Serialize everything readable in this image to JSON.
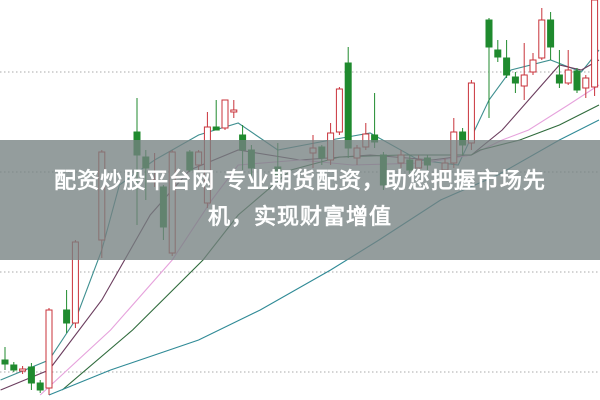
{
  "banner": {
    "line1": "配资炒股平台网 专业期货配资，助您把握市场先",
    "line2": "机，实现财富增值"
  },
  "chart_data": {
    "type": "candlestick",
    "title": "",
    "xlabel": "",
    "ylabel": "",
    "note_units": "relative price (no axis printed)",
    "ylim": [
      0,
      100
    ],
    "xlim": [
      -0.5,
      67.5
    ],
    "grid": true,
    "grid_levels": [
      82,
      57,
      32,
      7
    ],
    "colors": {
      "up": "#c8323a",
      "down": "#1f8a2e",
      "grid": "#aaaaaa",
      "banner": "#76827f"
    },
    "candle_fields": [
      "slot",
      "open",
      "close",
      "high",
      "low"
    ],
    "candles": [
      [
        0,
        10,
        9,
        13.25,
        7.5
      ],
      [
        1,
        8.75,
        7.5,
        9.5,
        7
      ],
      [
        2,
        7.25,
        7.75,
        8.5,
        6.5
      ],
      [
        3,
        8.25,
        4.25,
        9.25,
        2.5
      ],
      [
        4,
        4.25,
        2.5,
        5,
        1.75
      ],
      [
        5,
        3,
        22.5,
        23,
        1.25
      ],
      [
        7,
        22.5,
        19.25,
        27.5,
        16.75
      ],
      [
        8,
        19.25,
        39.5,
        40,
        18
      ],
      [
        11,
        40,
        62,
        62.5,
        35.5
      ],
      [
        15,
        67,
        61.25,
        75.5,
        43.75
      ],
      [
        16,
        60.75,
        58,
        62.5,
        50
      ],
      [
        17,
        54.5,
        55,
        61.75,
        53.25
      ],
      [
        18,
        53.25,
        43.25,
        53.75,
        40
      ],
      [
        19,
        36.75,
        62,
        62.5,
        36
      ],
      [
        21,
        62,
        57.5,
        62.5,
        57
      ],
      [
        22,
        58.75,
        62,
        62.5,
        57.5
      ],
      [
        23,
        49.25,
        68.25,
        72,
        48
      ],
      [
        24,
        68.25,
        67.5,
        75,
        67.5
      ],
      [
        25,
        68,
        75,
        75,
        67.5
      ],
      [
        26,
        72,
        72.5,
        75,
        70.5
      ],
      [
        27,
        66.25,
        62.5,
        68.75,
        57.5
      ],
      [
        28,
        62.5,
        58,
        63.75,
        55
      ],
      [
        31,
        58.25,
        56.25,
        64.25,
        55.5
      ],
      [
        35,
        61.75,
        63,
        66.25,
        58
      ],
      [
        36,
        63.25,
        60.5,
        63.75,
        58.75
      ],
      [
        37,
        60,
        66.75,
        69.25,
        58.75
      ],
      [
        38,
        67,
        77.75,
        78.25,
        66.25
      ],
      [
        39,
        84.25,
        63,
        88.25,
        60.5
      ],
      [
        40,
        60.5,
        63,
        63.75,
        58.75
      ],
      [
        41,
        63.25,
        66.5,
        69.25,
        62.5
      ],
      [
        42,
        66.25,
        64.5,
        76.75,
        63
      ],
      [
        43,
        61.25,
        53.75,
        62,
        52.5
      ],
      [
        45,
        59.25,
        61.25,
        62.5,
        58
      ],
      [
        46,
        60,
        57.5,
        61.25,
        56.25
      ],
      [
        47,
        58,
        60,
        61.25,
        57
      ],
      [
        48,
        60.5,
        58.75,
        61.25,
        57.5
      ],
      [
        50,
        57.5,
        59.25,
        60.5,
        56.25
      ],
      [
        51,
        59.25,
        67,
        70.5,
        58
      ],
      [
        52,
        67,
        63.75,
        68,
        61.25
      ],
      [
        53,
        64.25,
        79.25,
        80,
        62.5
      ],
      [
        55,
        95,
        88.25,
        95.5,
        70.5
      ],
      [
        56,
        87.5,
        85.75,
        90,
        84.5
      ],
      [
        57,
        85.5,
        81.25,
        90,
        80.5
      ],
      [
        58,
        80.75,
        79.25,
        82,
        76.75
      ],
      [
        59,
        78.5,
        81.25,
        89.25,
        75
      ],
      [
        60,
        82,
        85,
        86.75,
        81.25
      ],
      [
        61,
        85.5,
        95,
        98,
        85
      ],
      [
        62,
        95,
        88.25,
        97,
        85
      ],
      [
        63,
        81.25,
        79.25,
        87.5,
        78
      ],
      [
        64,
        79.25,
        82.5,
        87.5,
        78.75
      ],
      [
        65,
        82.25,
        77.5,
        83,
        76.75
      ],
      [
        66,
        78,
        80.5,
        81.25,
        75.5
      ],
      [
        67,
        78.25,
        100,
        100,
        76
      ]
    ],
    "moving_averages": [
      {
        "color": "#3e8f90",
        "points": [
          [
            -0.5,
            5
          ],
          [
            5,
            10
          ],
          [
            8,
            20
          ],
          [
            11,
            37.5
          ],
          [
            13,
            53.75
          ],
          [
            17,
            60
          ],
          [
            22,
            66.25
          ],
          [
            26.5,
            69.25
          ],
          [
            31,
            62.5
          ],
          [
            37,
            65
          ],
          [
            41.5,
            66.75
          ],
          [
            47,
            60
          ],
          [
            51.5,
            58.75
          ],
          [
            55,
            75
          ],
          [
            57.5,
            82.5
          ],
          [
            62,
            85
          ],
          [
            65.5,
            82
          ],
          [
            67.5,
            87.5
          ]
        ]
      },
      {
        "color": "#6b3d5e",
        "points": [
          [
            -0.5,
            2.5
          ],
          [
            5,
            7.5
          ],
          [
            11,
            25
          ],
          [
            16.5,
            46.25
          ],
          [
            21,
            57.5
          ],
          [
            26.5,
            62.5
          ],
          [
            33.5,
            60
          ],
          [
            41.5,
            61.25
          ],
          [
            48.5,
            60
          ],
          [
            53,
            61.25
          ],
          [
            56.5,
            67.5
          ],
          [
            59.5,
            75
          ],
          [
            63,
            83.75
          ],
          [
            65.5,
            82.5
          ],
          [
            67.5,
            85
          ]
        ]
      },
      {
        "color": "#e6a2dc",
        "points": [
          [
            4,
            1.25
          ],
          [
            12,
            17.5
          ],
          [
            19,
            35
          ],
          [
            23.5,
            50
          ],
          [
            26.5,
            58.75
          ],
          [
            33.5,
            60
          ],
          [
            39.5,
            58.75
          ],
          [
            47.5,
            59.25
          ],
          [
            53,
            61.25
          ],
          [
            56.5,
            65
          ],
          [
            59.5,
            67.5
          ],
          [
            64,
            73.75
          ],
          [
            67.5,
            78.75
          ]
        ]
      },
      {
        "color": "#2f6b3c",
        "points": [
          [
            6.5,
            2.5
          ],
          [
            14.5,
            17.5
          ],
          [
            22.5,
            35
          ],
          [
            26.5,
            46.25
          ],
          [
            32.5,
            57.5
          ],
          [
            38,
            60.75
          ],
          [
            45,
            61.25
          ],
          [
            53,
            61.25
          ],
          [
            54,
            62.5
          ],
          [
            58.5,
            65
          ],
          [
            63,
            68.75
          ],
          [
            67.5,
            73.75
          ]
        ]
      },
      {
        "color": "#2f8a96",
        "points": [
          [
            5,
            1.25
          ],
          [
            12,
            7.5
          ],
          [
            22,
            15
          ],
          [
            29,
            22.5
          ],
          [
            37,
            32.5
          ],
          [
            42.5,
            40
          ],
          [
            49.5,
            50
          ],
          [
            56,
            56.25
          ],
          [
            63,
            65
          ],
          [
            67.5,
            70
          ]
        ]
      }
    ]
  }
}
